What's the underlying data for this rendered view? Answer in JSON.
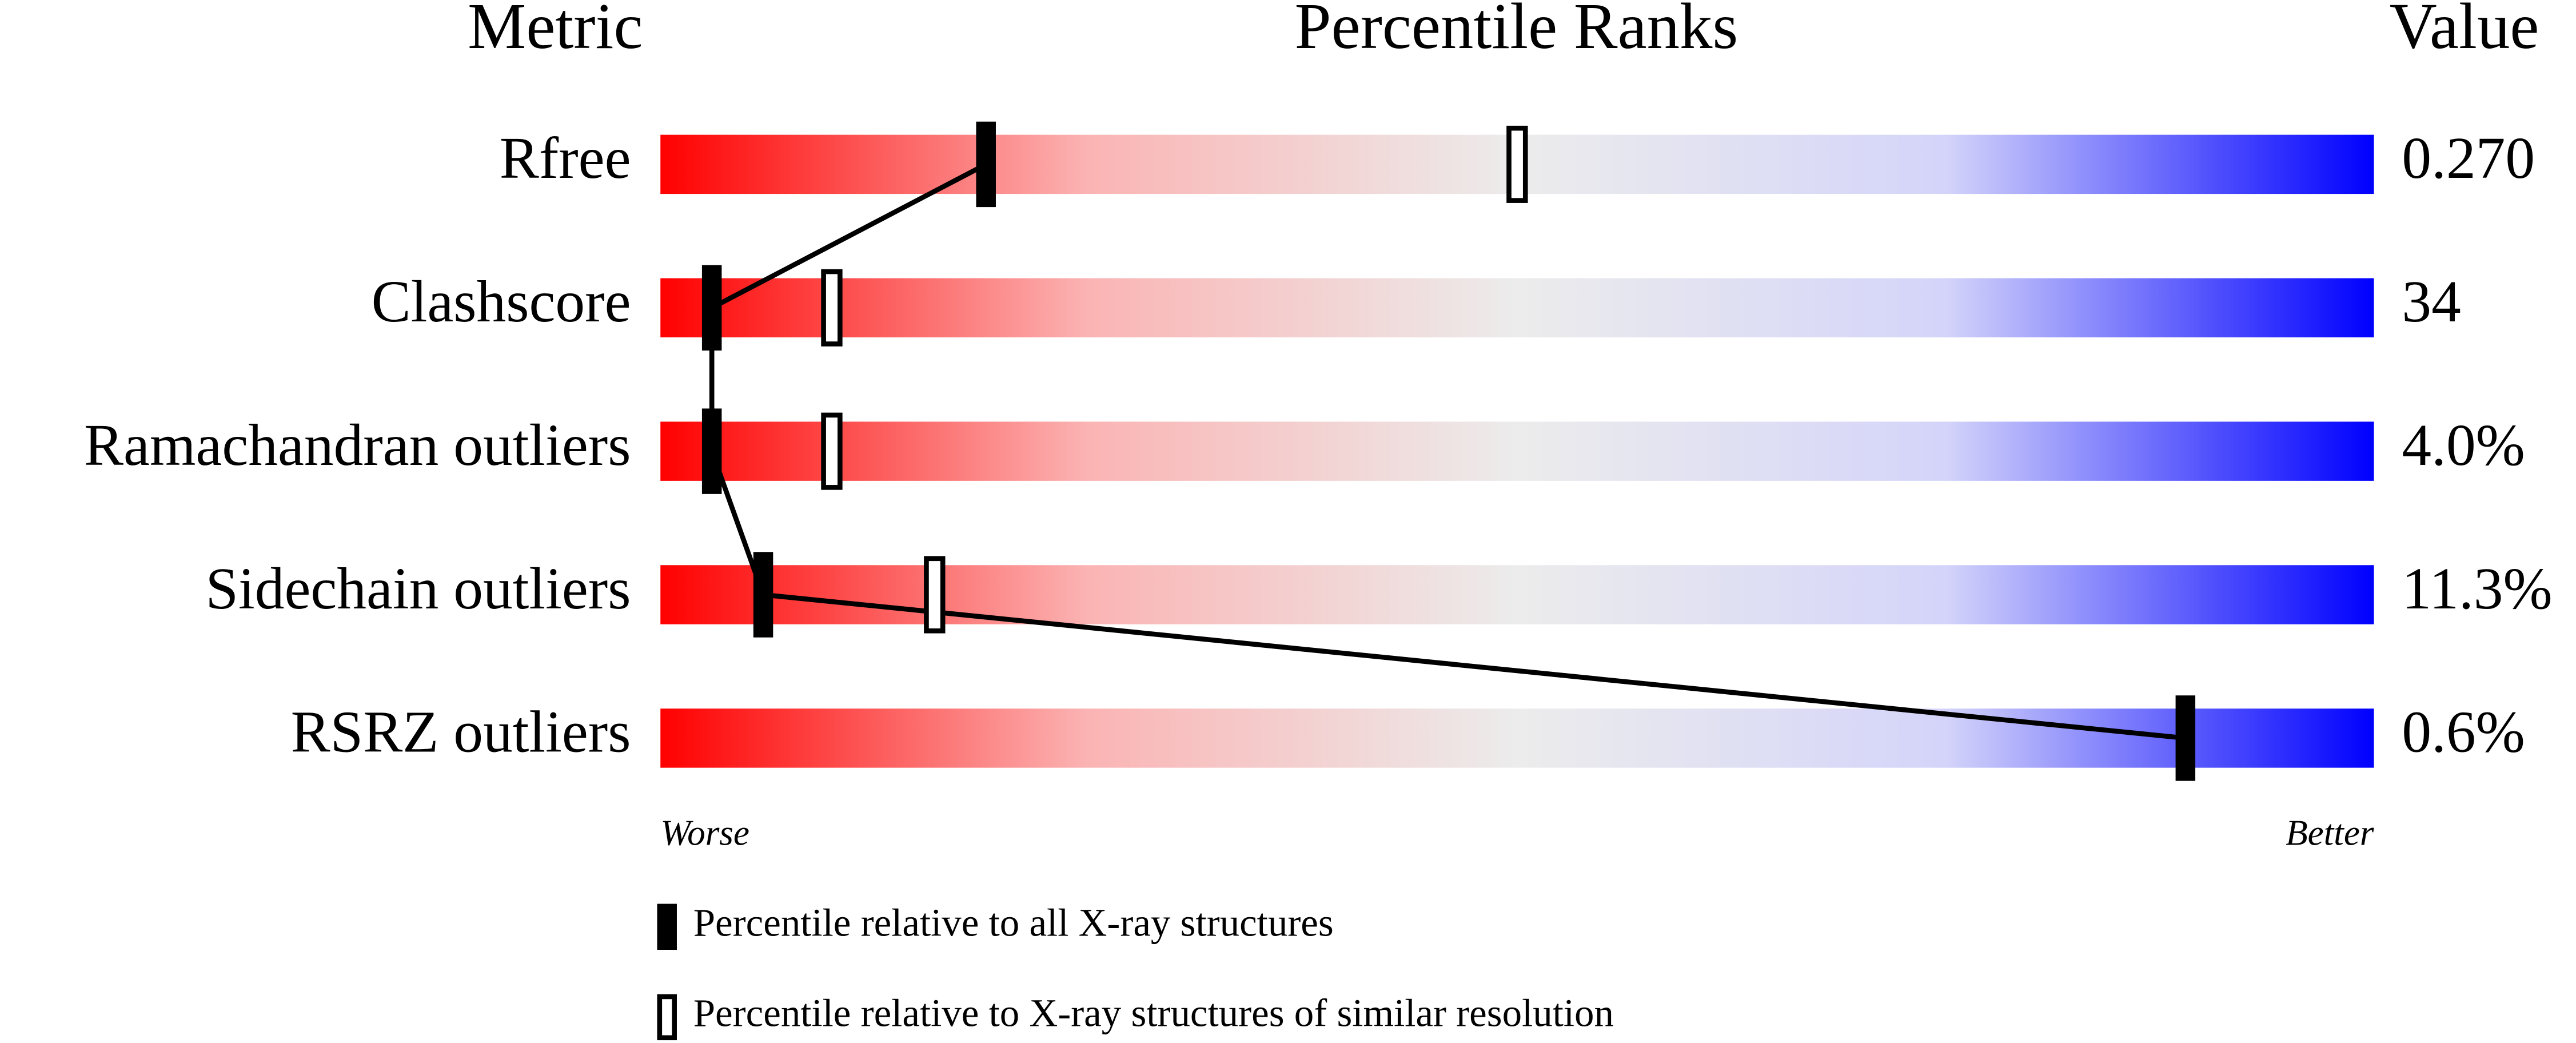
{
  "chart_data": {
    "type": "percentile",
    "headers": [
      "Metric",
      "Percentile Ranks",
      "Value"
    ],
    "categories": [
      "Rfree",
      "Clashscore",
      "Ramachandran outliers",
      "Sidechain outliers",
      "RSRZ outliers"
    ],
    "metric_values": [
      "0.270",
      "34",
      "4.0%",
      "11.3%",
      "0.6%"
    ],
    "series": [
      {
        "name": "Percentile relative to all X-ray structures",
        "color": "#000000",
        "style": "filled",
        "values": [
          19,
          3,
          3,
          6,
          89
        ]
      },
      {
        "name": "Percentile relative to X-ray structures of similar resolution",
        "color": "#000000",
        "style": "hollow",
        "values": [
          50,
          10,
          10,
          16,
          null
        ]
      }
    ],
    "xlim": [
      0,
      100
    ],
    "axis_end_labels": [
      "Worse",
      "Better"
    ]
  }
}
